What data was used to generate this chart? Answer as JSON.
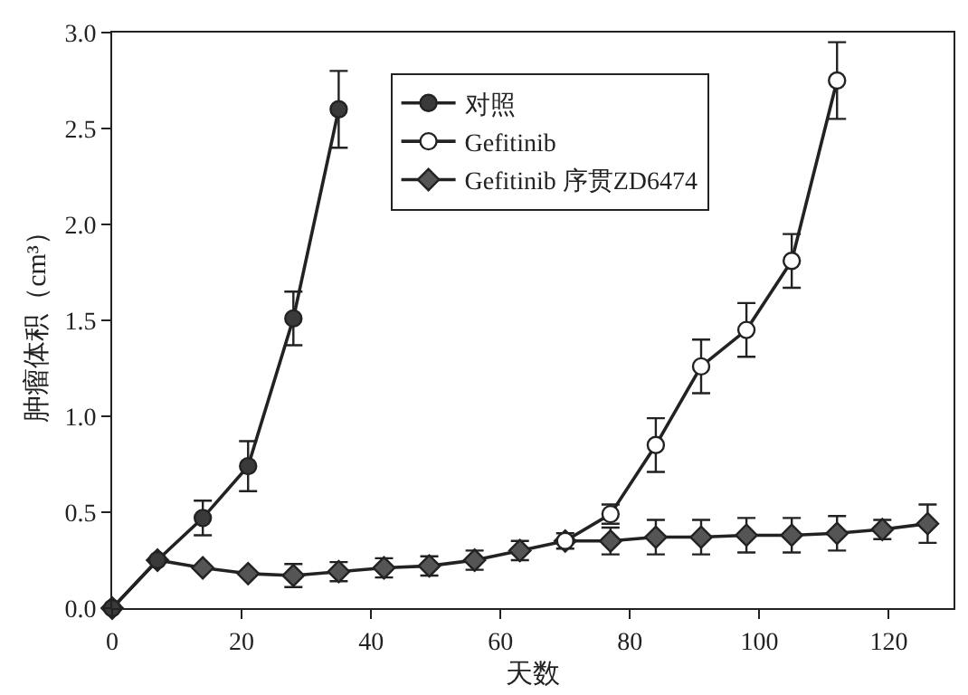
{
  "chart_data": {
    "type": "line",
    "xlabel": "天数",
    "ylabel": "肿瘤体积（cm³）",
    "xlim": [
      0,
      130
    ],
    "xticks": [
      0,
      20,
      40,
      60,
      80,
      100,
      120
    ],
    "ylim": [
      0,
      3.0
    ],
    "yticks": [
      {
        "value": 0,
        "label": "0.0"
      },
      0.5,
      {
        "value": 1,
        "label": "1.0"
      },
      1.5,
      {
        "value": 2,
        "label": "2.0"
      },
      2.5,
      {
        "value": 3,
        "label": "3.0"
      }
    ],
    "legend": "top",
    "line_style": "solid",
    "series": [
      {
        "name": "对照",
        "color": "#3a3a3a",
        "marker": "circle",
        "x": [
          0,
          7,
          14,
          21,
          28,
          35
        ],
        "values": [
          0,
          0.25,
          0.47,
          0.74,
          1.51,
          2.6
        ],
        "errors": [
          null,
          null,
          0.09,
          0.13,
          0.14,
          0.2
        ]
      },
      {
        "name": "Gefitinib",
        "color": "#ffffff",
        "marker": "circle",
        "x": [
          70,
          77,
          84,
          91,
          98,
          105,
          112
        ],
        "values": [
          0.35,
          0.49,
          0.85,
          1.26,
          1.45,
          1.81,
          2.75
        ],
        "errors": [
          null,
          0.05,
          0.14,
          0.14,
          0.14,
          0.14,
          0.2
        ]
      },
      {
        "name": "Gefitinib 序贯ZD6474",
        "color": "#555555",
        "marker": "diamond",
        "x": [
          0,
          7,
          14,
          21,
          28,
          35,
          42,
          49,
          56,
          63,
          70,
          77,
          84,
          91,
          98,
          105,
          112,
          119,
          126
        ],
        "values": [
          0,
          0.25,
          0.21,
          0.18,
          0.17,
          0.19,
          0.21,
          0.22,
          0.25,
          0.3,
          0.35,
          0.35,
          0.37,
          0.37,
          0.38,
          0.38,
          0.39,
          0.41,
          0.44
        ],
        "errors": [
          null,
          null,
          null,
          null,
          0.06,
          0.05,
          0.05,
          0.05,
          0.05,
          0.05,
          0.04,
          0.07,
          0.09,
          0.09,
          0.09,
          0.09,
          0.09,
          0.05,
          0.1
        ]
      }
    ]
  }
}
